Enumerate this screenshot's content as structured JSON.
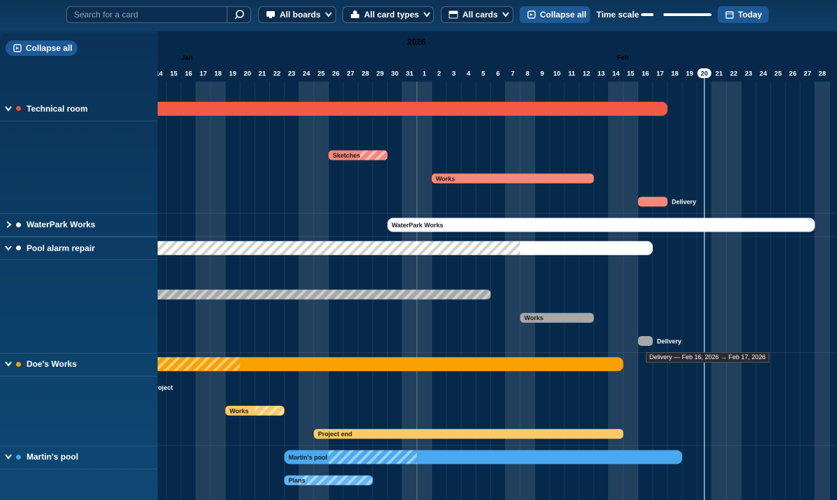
{
  "toolbar": {
    "search_placeholder": "Search for a card",
    "boards": "All boards",
    "card_types": "All card types",
    "cards": "All cards",
    "collapse": "Collapse all",
    "time_scale": "Time scale",
    "today": "Today"
  },
  "sidebar": {
    "collapse": "Collapse all"
  },
  "timeline": {
    "year": "2026",
    "months": [
      "Jan",
      "Feb"
    ],
    "today": "2026-02-20",
    "days": [
      {
        "date": "2026-01-14",
        "label": "14"
      },
      {
        "date": "2026-01-15",
        "label": "15"
      },
      {
        "date": "2026-01-16",
        "label": "16"
      },
      {
        "date": "2026-01-17",
        "label": "17"
      },
      {
        "date": "2026-01-18",
        "label": "18"
      },
      {
        "date": "2026-01-19",
        "label": "19"
      },
      {
        "date": "2026-01-20",
        "label": "20"
      },
      {
        "date": "2026-01-21",
        "label": "21"
      },
      {
        "date": "2026-01-22",
        "label": "22"
      },
      {
        "date": "2026-01-23",
        "label": "23"
      },
      {
        "date": "2026-01-24",
        "label": "24"
      },
      {
        "date": "2026-01-25",
        "label": "25"
      },
      {
        "date": "2026-01-26",
        "label": "26"
      },
      {
        "date": "2026-01-27",
        "label": "27"
      },
      {
        "date": "2026-01-28",
        "label": "28"
      },
      {
        "date": "2026-01-29",
        "label": "29"
      },
      {
        "date": "2026-01-30",
        "label": "30"
      },
      {
        "date": "2026-01-31",
        "label": "31"
      },
      {
        "date": "2026-02-01",
        "label": "1"
      },
      {
        "date": "2026-02-02",
        "label": "2"
      },
      {
        "date": "2026-02-03",
        "label": "3"
      },
      {
        "date": "2026-02-04",
        "label": "4"
      },
      {
        "date": "2026-02-05",
        "label": "5"
      },
      {
        "date": "2026-02-06",
        "label": "6"
      },
      {
        "date": "2026-02-07",
        "label": "7"
      },
      {
        "date": "2026-02-08",
        "label": "8"
      },
      {
        "date": "2026-02-09",
        "label": "9"
      },
      {
        "date": "2026-02-10",
        "label": "10"
      },
      {
        "date": "2026-02-11",
        "label": "11"
      },
      {
        "date": "2026-02-12",
        "label": "12"
      },
      {
        "date": "2026-02-13",
        "label": "13"
      },
      {
        "date": "2026-02-14",
        "label": "14"
      },
      {
        "date": "2026-02-15",
        "label": "15"
      },
      {
        "date": "2026-02-16",
        "label": "16"
      },
      {
        "date": "2026-02-17",
        "label": "17"
      },
      {
        "date": "2026-02-18",
        "label": "18"
      },
      {
        "date": "2026-02-19",
        "label": "19"
      },
      {
        "date": "2026-02-20",
        "label": "20"
      },
      {
        "date": "2026-02-21",
        "label": "21"
      },
      {
        "date": "2026-02-22",
        "label": "22"
      },
      {
        "date": "2026-02-23",
        "label": "23"
      },
      {
        "date": "2026-02-24",
        "label": "24"
      },
      {
        "date": "2026-02-25",
        "label": "25"
      },
      {
        "date": "2026-02-26",
        "label": "26"
      },
      {
        "date": "2026-02-27",
        "label": "27"
      },
      {
        "date": "2026-02-28",
        "label": "28"
      }
    ]
  },
  "groups": [
    {
      "name": "Technical room",
      "color": "#f0503c",
      "expanded": true,
      "bar": {
        "label": null,
        "start": "2025-12-20",
        "end": "2026-02-17",
        "color": "#f25a46"
      },
      "cards": [
        {
          "label": null,
          "start": "2025-12-15",
          "end": "2025-12-30",
          "color": "#f7877a"
        },
        {
          "label": "Sketches",
          "start": "2026-01-26",
          "end": "2026-01-29",
          "color": "#f7877a",
          "striped": [
            "2026-01-28",
            "2026-01-29"
          ]
        },
        {
          "label": "Works",
          "start": "2026-02-02",
          "end": "2026-02-12",
          "color": "#f7877a"
        },
        {
          "label": "Delivery",
          "start": "2026-02-16",
          "end": "2026-02-17",
          "color": "#f7877a",
          "label_outside": true
        }
      ]
    },
    {
      "name": "WaterPark Works",
      "color": "#ffffff",
      "expanded": false,
      "bar": {
        "label": "WaterPark Works",
        "start": "2026-01-30",
        "end": "2026-02-27",
        "color": "#ffffff"
      },
      "cards": []
    },
    {
      "name": "Pool alarm repair",
      "color": "#ffffff",
      "expanded": true,
      "bar": {
        "label": null,
        "start": "2025-12-20",
        "end": "2026-02-16",
        "color": "#ffffff",
        "striped": [
          "2025-12-20",
          "2026-02-07"
        ]
      },
      "cards": [
        {
          "label": null,
          "start": "2025-12-15",
          "end": "2025-12-30",
          "color": "#a8a8a8"
        },
        {
          "label": null,
          "start": "2025-12-28",
          "end": "2026-02-05",
          "color": "#a8a8a8",
          "striped": [
            "2025-12-28",
            "2026-02-05"
          ]
        },
        {
          "label": "Works",
          "start": "2026-02-08",
          "end": "2026-02-12",
          "color": "#a8a8a8"
        },
        {
          "label": "Delivery",
          "start": "2026-02-16",
          "end": "2026-02-16",
          "color": "#a8a8a8",
          "label_outside": true
        }
      ]
    },
    {
      "name": "Doe's Works",
      "color": "#f9a100",
      "expanded": true,
      "bar": {
        "label": null,
        "start": "2025-12-20",
        "end": "2026-02-14",
        "color": "#f9a100",
        "striped": [
          "2025-12-20",
          "2026-01-19"
        ]
      },
      "cards": [
        {
          "label": "Starting project",
          "start": "2026-01-05",
          "end": "2026-01-11",
          "color": "#fbc86a",
          "label_outside": true
        },
        {
          "label": "Works",
          "start": "2026-01-19",
          "end": "2026-01-22",
          "color": "#fbc86a",
          "striped": [
            "2026-01-21",
            "2026-01-22"
          ]
        },
        {
          "label": "Project end",
          "start": "2026-01-25",
          "end": "2026-02-14",
          "color": "#fbc86a"
        }
      ]
    },
    {
      "name": "Martin's pool",
      "color": "#4aa8f0",
      "expanded": true,
      "bar": {
        "label": "Martin's pool",
        "start": "2026-01-23",
        "end": "2026-02-18",
        "color": "#4aa8f0",
        "striped": [
          "2026-01-26",
          "2026-01-31"
        ]
      },
      "cards": [
        {
          "label": "Plans",
          "start": "2026-01-23",
          "end": "2026-01-28",
          "color": "#63b4f2",
          "striped": [
            "2026-01-24",
            "2026-01-28"
          ]
        }
      ]
    }
  ],
  "tooltip": "Delivery — Feb 16, 2026 → Feb 17, 2026"
}
